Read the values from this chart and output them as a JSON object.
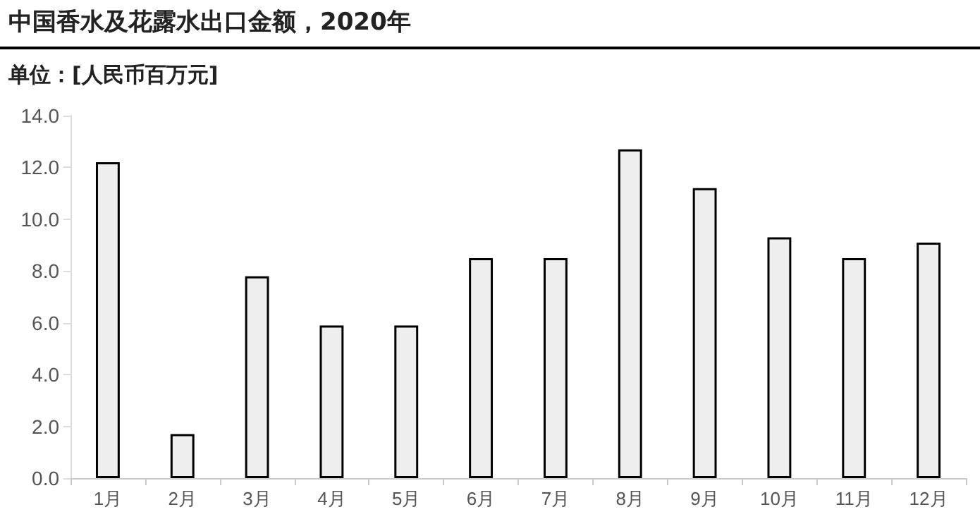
{
  "chart_data": {
    "type": "bar",
    "title": "中国香水及花露水出口金额，2020年",
    "ylabel": "单位：[人民币百万元]",
    "categories": [
      "1月",
      "2月",
      "3月",
      "4月",
      "5月",
      "6月",
      "7月",
      "8月",
      "9月",
      "10月",
      "11月",
      "12月"
    ],
    "values": [
      12.2,
      1.7,
      7.8,
      5.9,
      5.9,
      8.5,
      8.5,
      12.7,
      11.2,
      9.3,
      8.5,
      9.1
    ],
    "color": "#eeeeee",
    "ylim": [
      0,
      14
    ],
    "yticks": [
      {
        "value": 0,
        "label": "0.0"
      },
      {
        "value": 2,
        "label": "2.0"
      },
      {
        "value": 4,
        "label": "4.0"
      },
      {
        "value": 6,
        "label": "6.0"
      },
      {
        "value": 8,
        "label": "8.0"
      },
      {
        "value": 10,
        "label": "10.0"
      },
      {
        "value": 12,
        "label": "12.0"
      },
      {
        "value": 14,
        "label": "14.0"
      }
    ],
    "grid": false
  }
}
